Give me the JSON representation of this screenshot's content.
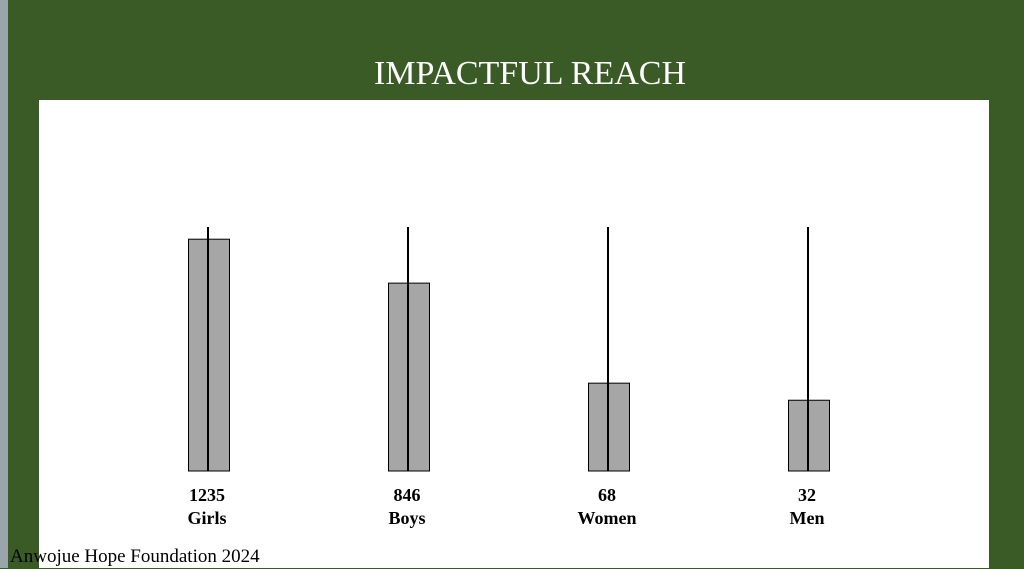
{
  "title": "IMPACTFUL REACH",
  "footer": "Anwojue Hope Foundation 2024",
  "colors": {
    "background": "#3a5a26",
    "panel": "#ffffff",
    "bar": "#a6a6a6",
    "text": "#000000"
  },
  "chart_data": {
    "type": "bar",
    "categories": [
      "Girls",
      "Boys",
      "Women",
      "Men"
    ],
    "values": [
      1235,
      846,
      68,
      32
    ],
    "bar_levels": [
      0.95,
      0.77,
      0.36,
      0.29
    ],
    "value_labels": [
      "1235",
      "846",
      "68",
      "32"
    ],
    "grid": false,
    "legend": "none"
  }
}
